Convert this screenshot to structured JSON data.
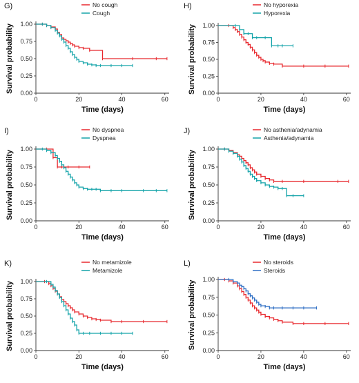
{
  "chart_data": [
    {
      "type": "line",
      "panel_label": "G)",
      "xlabel": "Time (days)",
      "ylabel": "Survival probability",
      "xlim": [
        0,
        62
      ],
      "ylim": [
        0,
        1
      ],
      "xticks": [
        0,
        20,
        40,
        60
      ],
      "yticks": [
        "0.00",
        "0.25",
        "0.50",
        "0.75",
        "1.00"
      ],
      "legend_position": "top-center",
      "series": [
        {
          "name": "No cough",
          "color": "#e8292e",
          "x": [
            0,
            3,
            5,
            7,
            9,
            10,
            11,
            12,
            13,
            14,
            15,
            16,
            17,
            18,
            20,
            22,
            25,
            31,
            45,
            56,
            61
          ],
          "y": [
            1.0,
            1.0,
            0.98,
            0.96,
            0.93,
            0.88,
            0.85,
            0.8,
            0.78,
            0.76,
            0.74,
            0.72,
            0.7,
            0.68,
            0.66,
            0.65,
            0.62,
            0.5,
            0.5,
            0.5,
            0.5
          ]
        },
        {
          "name": "Cough",
          "color": "#13a3a9",
          "x": [
            0,
            3,
            5,
            7,
            9,
            10,
            11,
            12,
            13,
            14,
            15,
            16,
            17,
            18,
            19,
            20,
            22,
            24,
            26,
            28,
            30,
            35,
            40,
            45
          ],
          "y": [
            1.0,
            1.0,
            0.98,
            0.95,
            0.91,
            0.87,
            0.83,
            0.78,
            0.74,
            0.69,
            0.65,
            0.6,
            0.56,
            0.52,
            0.49,
            0.46,
            0.44,
            0.42,
            0.41,
            0.4,
            0.4,
            0.4,
            0.4,
            0.4
          ]
        }
      ]
    },
    {
      "type": "line",
      "panel_label": "H)",
      "xlabel": "Time (days)",
      "ylabel": "Survival probability",
      "xlim": [
        0,
        62
      ],
      "ylim": [
        0,
        1
      ],
      "xticks": [
        0,
        20,
        40,
        60
      ],
      "yticks": [
        "0.00",
        "0.25",
        "0.50",
        "0.75",
        "1.00"
      ],
      "legend_position": "top-center",
      "series": [
        {
          "name": "No hyporexia",
          "color": "#e8292e",
          "x": [
            0,
            5,
            7,
            8,
            9,
            10,
            11,
            12,
            13,
            14,
            15,
            16,
            17,
            18,
            19,
            20,
            21,
            22,
            24,
            26,
            30,
            40,
            50,
            61
          ],
          "y": [
            1.0,
            1.0,
            0.97,
            0.94,
            0.91,
            0.87,
            0.83,
            0.79,
            0.75,
            0.72,
            0.68,
            0.64,
            0.6,
            0.56,
            0.53,
            0.5,
            0.48,
            0.46,
            0.44,
            0.43,
            0.4,
            0.4,
            0.4,
            0.4
          ]
        },
        {
          "name": "Hyporexia",
          "color": "#13a3a9",
          "x": [
            0,
            8,
            10,
            12,
            14,
            16,
            18,
            22,
            25,
            28,
            30,
            35
          ],
          "y": [
            1.0,
            1.0,
            0.94,
            0.88,
            0.88,
            0.82,
            0.82,
            0.82,
            0.7,
            0.7,
            0.7,
            0.7
          ]
        }
      ]
    },
    {
      "type": "line",
      "panel_label": "I)",
      "xlabel": "Time (days)",
      "ylabel": "Survival probability",
      "xlim": [
        0,
        62
      ],
      "ylim": [
        0,
        1
      ],
      "xticks": [
        0,
        20,
        40,
        60
      ],
      "yticks": [
        "0.00",
        "0.25",
        "0.50",
        "0.75",
        "1.00"
      ],
      "legend_position": "top-center",
      "series": [
        {
          "name": "No dyspnea",
          "color": "#e8292e",
          "x": [
            0,
            5,
            8,
            10,
            12,
            15,
            20,
            25
          ],
          "y": [
            1.0,
            1.0,
            0.88,
            0.75,
            0.75,
            0.75,
            0.75,
            0.75
          ]
        },
        {
          "name": "Dyspnea",
          "color": "#13a3a9",
          "x": [
            0,
            3,
            5,
            7,
            9,
            10,
            11,
            12,
            13,
            14,
            15,
            16,
            17,
            18,
            19,
            20,
            22,
            24,
            26,
            28,
            30,
            35,
            40,
            50,
            56,
            61
          ],
          "y": [
            1.0,
            1.0,
            0.98,
            0.95,
            0.91,
            0.87,
            0.83,
            0.78,
            0.74,
            0.69,
            0.65,
            0.61,
            0.57,
            0.53,
            0.5,
            0.47,
            0.45,
            0.44,
            0.44,
            0.44,
            0.42,
            0.42,
            0.42,
            0.42,
            0.42,
            0.42
          ]
        }
      ]
    },
    {
      "type": "line",
      "panel_label": "J)",
      "xlabel": "Time (days)",
      "ylabel": "Survival probability",
      "xlim": [
        0,
        62
      ],
      "ylim": [
        0,
        1
      ],
      "xticks": [
        0,
        20,
        40,
        60
      ],
      "yticks": [
        "0.00",
        "0.25",
        "0.50",
        "0.75",
        "1.00"
      ],
      "legend_position": "top-center",
      "series": [
        {
          "name": "No asthenia/adynamia",
          "color": "#e8292e",
          "x": [
            0,
            3,
            5,
            7,
            9,
            10,
            11,
            12,
            13,
            14,
            15,
            16,
            17,
            18,
            20,
            22,
            24,
            26,
            30,
            40,
            56,
            61
          ],
          "y": [
            1.0,
            1.0,
            0.98,
            0.95,
            0.92,
            0.9,
            0.87,
            0.84,
            0.81,
            0.78,
            0.74,
            0.71,
            0.68,
            0.65,
            0.62,
            0.59,
            0.57,
            0.55,
            0.55,
            0.55,
            0.55,
            0.55
          ]
        },
        {
          "name": "Asthenia/adynamia",
          "color": "#13a3a9",
          "x": [
            0,
            3,
            5,
            7,
            9,
            10,
            11,
            12,
            13,
            14,
            15,
            16,
            17,
            18,
            20,
            22,
            24,
            26,
            28,
            30,
            32,
            35,
            40
          ],
          "y": [
            1.0,
            1.0,
            0.97,
            0.94,
            0.9,
            0.86,
            0.82,
            0.77,
            0.73,
            0.69,
            0.65,
            0.62,
            0.59,
            0.56,
            0.53,
            0.5,
            0.48,
            0.47,
            0.45,
            0.45,
            0.35,
            0.35,
            0.35
          ]
        }
      ]
    },
    {
      "type": "line",
      "panel_label": "K)",
      "xlabel": "Time (days)",
      "ylabel": "Survival probability",
      "xlim": [
        0,
        62
      ],
      "ylim": [
        0,
        1
      ],
      "xticks": [
        0,
        20,
        40,
        60
      ],
      "yticks": [
        "0.00",
        "0.25",
        "0.50",
        "0.75",
        "1.00"
      ],
      "legend_position": "top-center",
      "series": [
        {
          "name": "No metamizole",
          "color": "#e8292e",
          "x": [
            0,
            4,
            6,
            7,
            8,
            9,
            10,
            11,
            12,
            13,
            14,
            15,
            16,
            17,
            18,
            20,
            22,
            24,
            26,
            28,
            30,
            35,
            40,
            50,
            61
          ],
          "y": [
            1.0,
            1.0,
            0.97,
            0.94,
            0.9,
            0.86,
            0.82,
            0.78,
            0.74,
            0.71,
            0.68,
            0.65,
            0.62,
            0.59,
            0.56,
            0.53,
            0.5,
            0.48,
            0.46,
            0.45,
            0.44,
            0.42,
            0.42,
            0.42,
            0.42
          ]
        },
        {
          "name": "Metamizole",
          "color": "#13a3a9",
          "x": [
            0,
            5,
            7,
            8,
            9,
            10,
            11,
            12,
            13,
            14,
            15,
            16,
            17,
            18,
            19,
            20,
            22,
            25,
            30,
            35,
            40,
            45
          ],
          "y": [
            1.0,
            1.0,
            0.96,
            0.92,
            0.87,
            0.82,
            0.77,
            0.71,
            0.65,
            0.59,
            0.53,
            0.47,
            0.42,
            0.37,
            0.3,
            0.25,
            0.25,
            0.25,
            0.25,
            0.25,
            0.25,
            0.25
          ]
        }
      ]
    },
    {
      "type": "line",
      "panel_label": "L)",
      "xlabel": "Time (days)",
      "ylabel": "Survival probability",
      "xlim": [
        0,
        62
      ],
      "ylim": [
        0,
        1
      ],
      "xticks": [
        0,
        20,
        40,
        60
      ],
      "yticks": [
        "0.00",
        "0.25",
        "0.50",
        "0.75",
        "1.00"
      ],
      "legend_position": "top-center",
      "series": [
        {
          "name": "No steroids",
          "color": "#e8292e",
          "x": [
            0,
            3,
            5,
            7,
            9,
            10,
            11,
            12,
            13,
            14,
            15,
            16,
            17,
            18,
            19,
            20,
            22,
            24,
            26,
            28,
            30,
            35,
            40,
            50,
            61
          ],
          "y": [
            1.0,
            1.0,
            0.98,
            0.95,
            0.91,
            0.87,
            0.83,
            0.79,
            0.75,
            0.71,
            0.67,
            0.63,
            0.6,
            0.57,
            0.54,
            0.51,
            0.48,
            0.46,
            0.44,
            0.42,
            0.4,
            0.38,
            0.38,
            0.38,
            0.38
          ]
        },
        {
          "name": "Steroids",
          "color": "#2f6fc4",
          "x": [
            0,
            5,
            7,
            9,
            10,
            11,
            12,
            13,
            14,
            15,
            16,
            17,
            18,
            19,
            20,
            22,
            24,
            26,
            30,
            35,
            40,
            46
          ],
          "y": [
            1.0,
            1.0,
            0.97,
            0.95,
            0.92,
            0.9,
            0.87,
            0.84,
            0.8,
            0.77,
            0.74,
            0.71,
            0.68,
            0.65,
            0.63,
            0.62,
            0.6,
            0.6,
            0.6,
            0.6,
            0.6,
            0.6
          ]
        }
      ]
    }
  ]
}
